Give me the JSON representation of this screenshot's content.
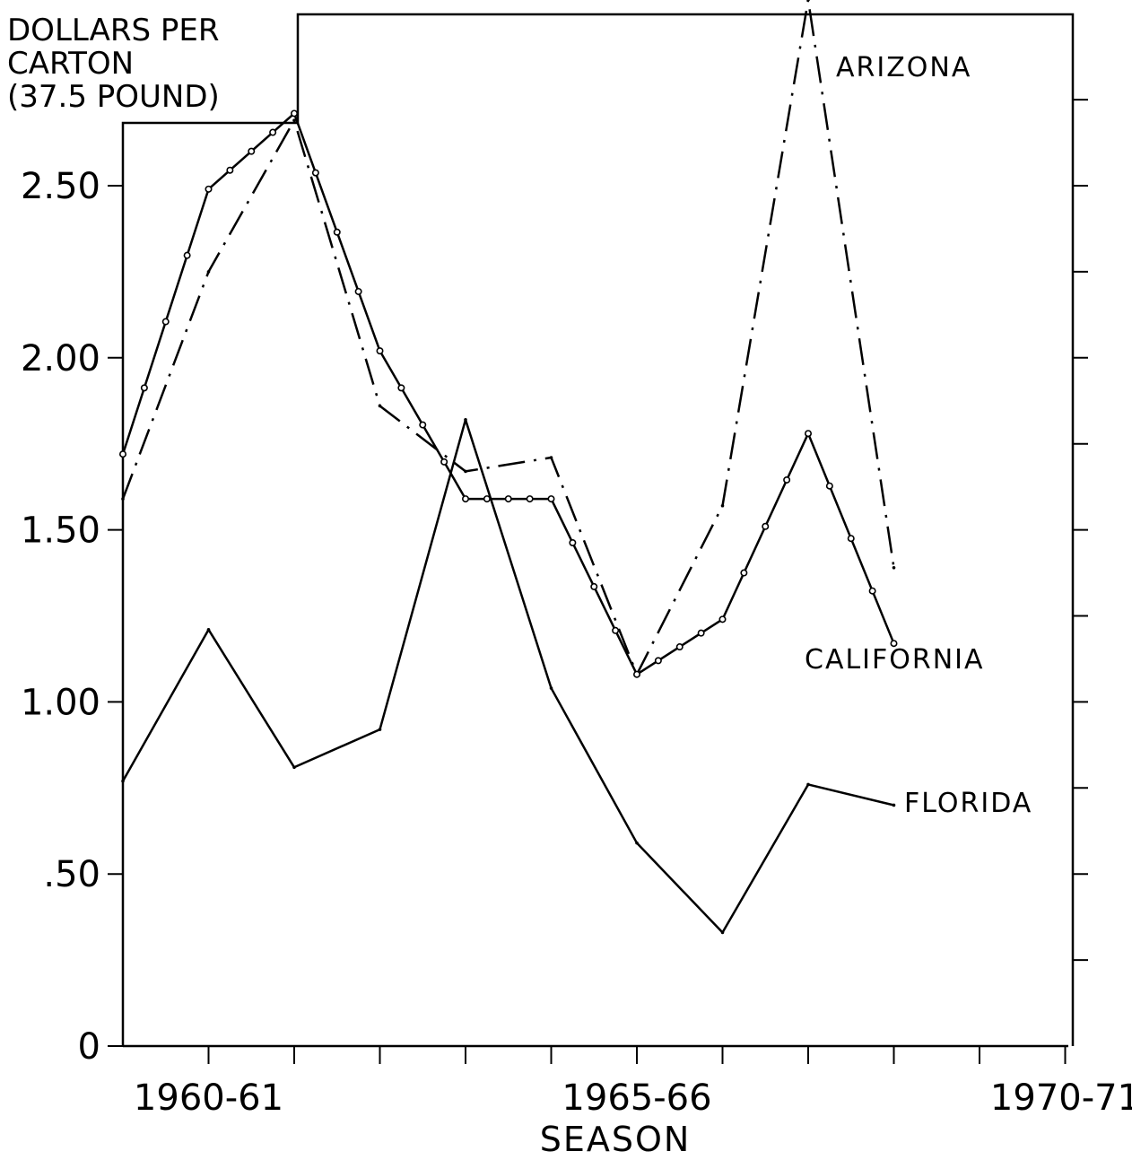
{
  "chart_data": {
    "type": "line",
    "ylabel_lines": [
      "DOLLARS PER",
      "CARTON",
      "(37.5 POUND)"
    ],
    "xlabel": "SEASON",
    "ylim": [
      0,
      2.95
    ],
    "xlim": [
      1959,
      1970
    ],
    "yticks": [
      {
        "value": 0,
        "label": "0"
      },
      {
        "value": 0.5,
        "label": ".50"
      },
      {
        "value": 1.0,
        "label": "1.00"
      },
      {
        "value": 1.5,
        "label": "1.50"
      },
      {
        "value": 2.0,
        "label": "2.00"
      },
      {
        "value": 2.5,
        "label": "2.50"
      }
    ],
    "xticks": [
      {
        "value": 1960,
        "label": "1960-61"
      },
      {
        "value": 1965,
        "label": "1965-66"
      },
      {
        "value": 1970,
        "label": "1970-71"
      }
    ],
    "grid": false,
    "series": [
      {
        "name": "ARIZONA",
        "style": "dash-dot",
        "x": [
          1959,
          1960,
          1961,
          1962,
          1963,
          1964,
          1965,
          1966,
          1967,
          1968
        ],
        "y": [
          1.59,
          2.25,
          2.69,
          1.86,
          1.67,
          1.71,
          1.08,
          1.57,
          3.04,
          1.39
        ]
      },
      {
        "name": "CALIFORNIA",
        "style": "line-with-circles",
        "x": [
          1959,
          1960,
          1961,
          1962,
          1963,
          1964,
          1965,
          1966,
          1967,
          1968
        ],
        "y": [
          1.72,
          2.49,
          2.71,
          2.02,
          1.59,
          1.59,
          1.08,
          1.24,
          1.78,
          1.17
        ]
      },
      {
        "name": "FLORIDA",
        "style": "solid",
        "x": [
          1959,
          1960,
          1961,
          1962,
          1963,
          1964,
          1965,
          1966,
          1967,
          1968
        ],
        "y": [
          0.77,
          1.21,
          0.81,
          0.92,
          1.82,
          1.04,
          0.59,
          0.33,
          0.76,
          0.7
        ]
      }
    ]
  }
}
